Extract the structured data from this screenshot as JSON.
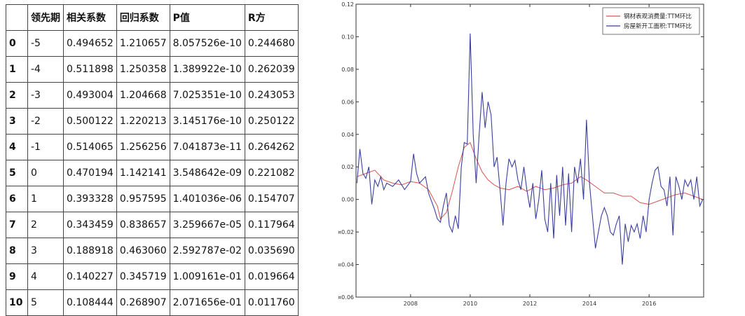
{
  "table": {
    "columns": [
      "",
      "领先期",
      "相关系数",
      "回归系数",
      "P值",
      "R方"
    ],
    "rows": [
      [
        "0",
        "-5",
        "0.494652",
        "1.210657",
        "8.057526e-10",
        "0.244680"
      ],
      [
        "1",
        "-4",
        "0.511898",
        "1.250358",
        "1.389922e-10",
        "0.262039"
      ],
      [
        "2",
        "-3",
        "0.493004",
        "1.204668",
        "7.025351e-10",
        "0.243053"
      ],
      [
        "3",
        "-2",
        "0.500122",
        "1.220213",
        "3.145176e-10",
        "0.250122"
      ],
      [
        "4",
        "-1",
        "0.514065",
        "1.256256",
        "7.041873e-11",
        "0.264262"
      ],
      [
        "5",
        "0",
        "0.470194",
        "1.142141",
        "3.548642e-09",
        "0.221082"
      ],
      [
        "6",
        "1",
        "0.393328",
        "0.957595",
        "1.401036e-06",
        "0.154707"
      ],
      [
        "7",
        "2",
        "0.343459",
        "0.838657",
        "3.259667e-05",
        "0.117964"
      ],
      [
        "8",
        "3",
        "0.188918",
        "0.463060",
        "2.592787e-02",
        "0.035690"
      ],
      [
        "9",
        "4",
        "0.140227",
        "0.345719",
        "1.009161e-01",
        "0.019664"
      ],
      [
        "10",
        "5",
        "0.108444",
        "0.268907",
        "2.071656e-01",
        "0.011760"
      ]
    ]
  },
  "chart_data": {
    "type": "line",
    "title": "",
    "xlabel": "",
    "ylabel": "",
    "xlim": [
      2006.17,
      2017.83
    ],
    "ylim": [
      -0.06,
      0.12
    ],
    "xticks": [
      2008,
      2010,
      2012,
      2014,
      2016
    ],
    "xtick_labels": [
      "2008",
      "2010",
      "2012",
      "2014",
      "2016"
    ],
    "yticks": [
      -0.06,
      -0.04,
      -0.02,
      0.0,
      0.02,
      0.04,
      0.06,
      0.08,
      0.1,
      0.12
    ],
    "ytick_labels": [
      "¤0.06",
      "¤0.04",
      "¤0.02",
      "0.00",
      "0.02",
      "0.04",
      "0.06",
      "0.08",
      "0.10",
      "0.12"
    ],
    "legend_position": "top-right",
    "series": [
      {
        "name": "钢材表观消费量:TTM环比",
        "color": "#d9534f",
        "points": [
          [
            2006.2,
            0.014
          ],
          [
            2006.5,
            0.016
          ],
          [
            2006.8,
            0.018
          ],
          [
            2007.1,
            0.012
          ],
          [
            2007.4,
            0.01
          ],
          [
            2007.7,
            0.009
          ],
          [
            2008.0,
            0.011
          ],
          [
            2008.3,
            0.01
          ],
          [
            2008.6,
            0.006
          ],
          [
            2008.9,
            -0.004
          ],
          [
            2009.0,
            -0.012
          ],
          [
            2009.2,
            -0.008
          ],
          [
            2009.4,
            0.005
          ],
          [
            2009.6,
            0.02
          ],
          [
            2009.8,
            0.032
          ],
          [
            2010.0,
            0.035
          ],
          [
            2010.2,
            0.025
          ],
          [
            2010.4,
            0.017
          ],
          [
            2010.6,
            0.012
          ],
          [
            2010.8,
            0.009
          ],
          [
            2011.0,
            0.007
          ],
          [
            2011.3,
            0.006
          ],
          [
            2011.6,
            0.008
          ],
          [
            2011.9,
            0.005
          ],
          [
            2012.2,
            0.008
          ],
          [
            2012.5,
            0.006
          ],
          [
            2012.8,
            0.007
          ],
          [
            2013.1,
            0.009
          ],
          [
            2013.4,
            0.01
          ],
          [
            2013.7,
            0.014
          ],
          [
            2013.9,
            0.012
          ],
          [
            2014.2,
            0.008
          ],
          [
            2014.5,
            0.004
          ],
          [
            2014.8,
            0.004
          ],
          [
            2015.1,
            0.002
          ],
          [
            2015.4,
            0.002
          ],
          [
            2015.7,
            -0.002
          ],
          [
            2016.0,
            -0.003
          ],
          [
            2016.3,
            -0.001
          ],
          [
            2016.6,
            0.001
          ],
          [
            2016.9,
            0.003
          ],
          [
            2017.2,
            0.004
          ],
          [
            2017.5,
            0.002
          ],
          [
            2017.8,
            0.0
          ]
        ]
      },
      {
        "name": "房屋新开工面积:TTM环比",
        "color": "#3b3f9e",
        "points": [
          [
            2006.2,
            0.01
          ],
          [
            2006.3,
            0.031
          ],
          [
            2006.4,
            0.016
          ],
          [
            2006.5,
            0.013
          ],
          [
            2006.6,
            0.02
          ],
          [
            2006.7,
            -0.003
          ],
          [
            2006.8,
            0.012
          ],
          [
            2006.9,
            0.008
          ],
          [
            2007.0,
            0.014
          ],
          [
            2007.1,
            0.006
          ],
          [
            2007.2,
            0.01
          ],
          [
            2007.4,
            0.008
          ],
          [
            2007.6,
            0.012
          ],
          [
            2007.8,
            0.006
          ],
          [
            2008.0,
            0.011
          ],
          [
            2008.1,
            0.028
          ],
          [
            2008.2,
            0.016
          ],
          [
            2008.3,
            0.01
          ],
          [
            2008.5,
            0.014
          ],
          [
            2008.6,
            0.004
          ],
          [
            2008.8,
            -0.006
          ],
          [
            2008.9,
            -0.012
          ],
          [
            2009.0,
            -0.014
          ],
          [
            2009.1,
            -0.004
          ],
          [
            2009.2,
            0.004
          ],
          [
            2009.3,
            -0.016
          ],
          [
            2009.4,
            -0.02
          ],
          [
            2009.5,
            -0.01
          ],
          [
            2009.6,
            -0.018
          ],
          [
            2009.7,
            0.02
          ],
          [
            2009.8,
            0.035
          ],
          [
            2009.9,
            0.034
          ],
          [
            2010.0,
            0.102
          ],
          [
            2010.1,
            0.04
          ],
          [
            2010.2,
            0.01
          ],
          [
            2010.3,
            0.04
          ],
          [
            2010.4,
            0.066
          ],
          [
            2010.5,
            0.044
          ],
          [
            2010.6,
            0.06
          ],
          [
            2010.7,
            0.052
          ],
          [
            2010.8,
            0.02
          ],
          [
            2010.9,
            0.026
          ],
          [
            2011.0,
            0.006
          ],
          [
            2011.1,
            -0.016
          ],
          [
            2011.2,
            0.01
          ],
          [
            2011.3,
            0.025
          ],
          [
            2011.4,
            0.02
          ],
          [
            2011.5,
            0.024
          ],
          [
            2011.6,
            0.012
          ],
          [
            2011.7,
            0.006
          ],
          [
            2011.8,
            0.02
          ],
          [
            2011.9,
            0.006
          ],
          [
            2012.0,
            -0.005
          ],
          [
            2012.1,
            0.01
          ],
          [
            2012.2,
            -0.012
          ],
          [
            2012.3,
            0.0
          ],
          [
            2012.4,
            0.018
          ],
          [
            2012.5,
            -0.012
          ],
          [
            2012.6,
            -0.02
          ],
          [
            2012.7,
            0.01
          ],
          [
            2012.8,
            -0.024
          ],
          [
            2012.9,
            0.015
          ],
          [
            2013.0,
            -0.01
          ],
          [
            2013.1,
            0.02
          ],
          [
            2013.2,
            -0.016
          ],
          [
            2013.3,
            0.016
          ],
          [
            2013.4,
            -0.02
          ],
          [
            2013.5,
            0.02
          ],
          [
            2013.6,
            0.01
          ],
          [
            2013.7,
            0.025
          ],
          [
            2013.8,
            0.0
          ],
          [
            2013.9,
            0.049
          ],
          [
            2014.0,
            0.01
          ],
          [
            2014.1,
            -0.01
          ],
          [
            2014.2,
            -0.03
          ],
          [
            2014.3,
            -0.02
          ],
          [
            2014.4,
            -0.01
          ],
          [
            2014.5,
            -0.005
          ],
          [
            2014.6,
            -0.01
          ],
          [
            2014.7,
            -0.02
          ],
          [
            2014.8,
            -0.022
          ],
          [
            2014.9,
            -0.015
          ],
          [
            2015.0,
            -0.01
          ],
          [
            2015.1,
            -0.04
          ],
          [
            2015.2,
            -0.015
          ],
          [
            2015.3,
            -0.026
          ],
          [
            2015.4,
            -0.016
          ],
          [
            2015.5,
            -0.02
          ],
          [
            2015.6,
            -0.015
          ],
          [
            2015.7,
            -0.024
          ],
          [
            2015.8,
            -0.01
          ],
          [
            2015.9,
            -0.02
          ],
          [
            2016.0,
            0.0
          ],
          [
            2016.1,
            0.01
          ],
          [
            2016.2,
            0.018
          ],
          [
            2016.3,
            0.02
          ],
          [
            2016.4,
            0.008
          ],
          [
            2016.5,
            0.006
          ],
          [
            2016.6,
            -0.004
          ],
          [
            2016.7,
            0.014
          ],
          [
            2016.8,
            -0.022
          ],
          [
            2016.9,
            0.014
          ],
          [
            2017.0,
            0.008
          ],
          [
            2017.1,
            0.0
          ],
          [
            2017.2,
            0.012
          ],
          [
            2017.3,
            0.008
          ],
          [
            2017.4,
            0.012
          ],
          [
            2017.5,
            0.0
          ],
          [
            2017.6,
            0.014
          ],
          [
            2017.7,
            -0.004
          ],
          [
            2017.8,
            0.0
          ]
        ]
      }
    ]
  }
}
